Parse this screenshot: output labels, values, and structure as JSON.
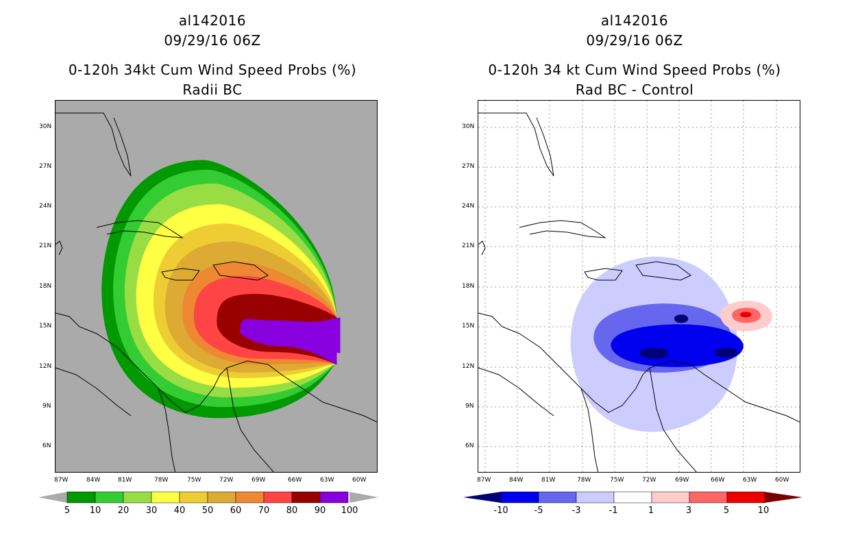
{
  "left": {
    "title_lines": [
      "al142016",
      "09/29/16 06Z",
      "0-120h 34kt Cum Wind Speed Probs (%)",
      "Radii BC"
    ],
    "colorbar_labels": [
      "5",
      "10",
      "20",
      "30",
      "40",
      "50",
      "60",
      "70",
      "80",
      "90",
      "100"
    ],
    "colorbar_colors": [
      "#009900",
      "#33cc33",
      "#99dd44",
      "#ffff44",
      "#eecc33",
      "#ddaa33",
      "#ee8833",
      "#ff4444",
      "#990000",
      "#8800dd"
    ]
  },
  "right": {
    "title_lines": [
      "al142016",
      "09/29/16 06Z",
      "0-120h 34 kt Cum Wind Speed Probs (%)",
      "Rad BC - Control"
    ],
    "colorbar_labels": [
      "-10",
      "-5",
      "-3",
      "-1",
      "1",
      "3",
      "5",
      "10"
    ],
    "colorbar_colors": [
      "#000077",
      "#0000ee",
      "#6666ee",
      "#ccccff",
      "#ffffff",
      "#ffcccc",
      "#ff6666",
      "#ee0000",
      "#770000"
    ]
  },
  "axes": {
    "lon_labels": [
      "87W",
      "84W",
      "81W",
      "78W",
      "75W",
      "72W",
      "69W",
      "66W",
      "63W",
      "60W"
    ],
    "lat_labels": [
      "30N",
      "27N",
      "24N",
      "21N",
      "18N",
      "15N",
      "12N",
      "9N",
      "6N"
    ]
  },
  "chart_data": [
    {
      "type": "heatmap",
      "title": "0-120h 34kt Cum Wind Speed Probs (%)",
      "subtitle": "Radii BC",
      "storm": "al142016",
      "time": "09/29/16 06Z",
      "x_range_lon": [
        -87.5,
        -59.5
      ],
      "y_range_lat": [
        4.5,
        31.5
      ],
      "levels": [
        5,
        10,
        20,
        30,
        40,
        50,
        60,
        70,
        80,
        90,
        100
      ],
      "max_probability_region": {
        "lon_range": [
          -69,
          -63
        ],
        "lat_range": [
          14,
          15.5
        ],
        "value": ">90"
      }
    },
    {
      "type": "heatmap",
      "title": "0-120h 34 kt Cum Wind Speed Probs (%)",
      "subtitle": "Rad BC - Control",
      "storm": "al142016",
      "time": "09/29/16 06Z",
      "x_range_lon": [
        -87.5,
        -59.5
      ],
      "y_range_lat": [
        4.5,
        31.5
      ],
      "levels": [
        -10,
        -5,
        -3,
        -1,
        1,
        3,
        5,
        10
      ],
      "min_difference_region": {
        "lon_range": [
          -74,
          -65
        ],
        "lat_range": [
          12.5,
          14
        ],
        "value": "<-10"
      },
      "max_difference_region": {
        "lon_range": [
          -65.5,
          -64
        ],
        "lat_range": [
          15.5,
          16.5
        ],
        "value": ">5"
      }
    }
  ]
}
